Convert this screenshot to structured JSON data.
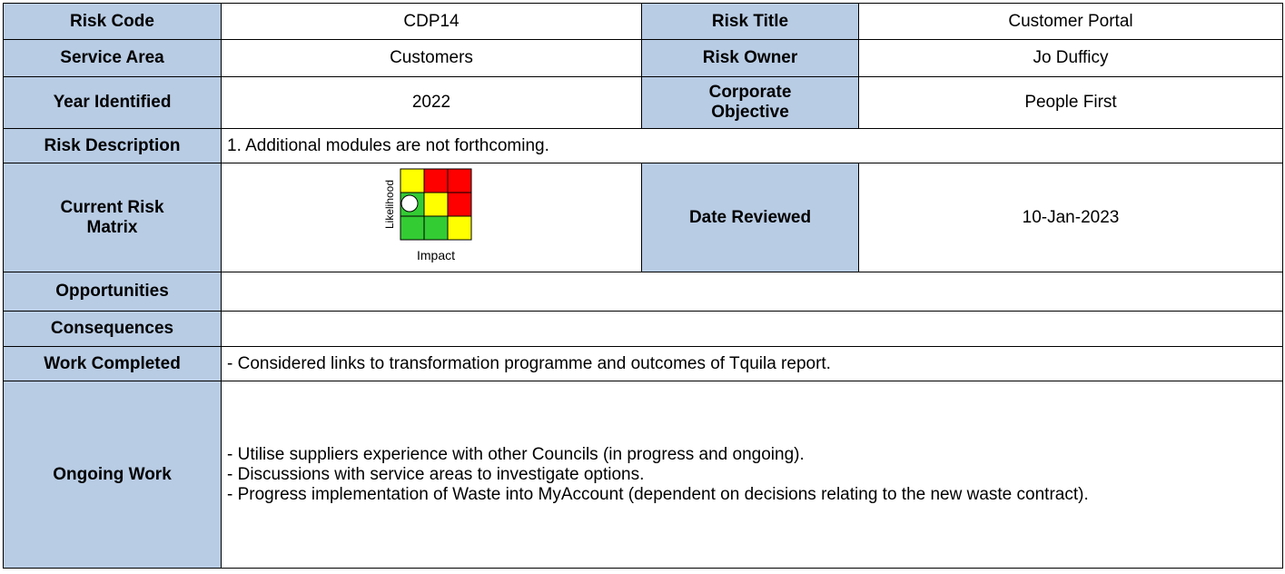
{
  "table": {
    "risk_code": {
      "label": "Risk Code",
      "value": "CDP14"
    },
    "risk_title": {
      "label": "Risk Title",
      "value": "Customer Portal"
    },
    "service_area": {
      "label": "Service Area",
      "value": "Customers"
    },
    "risk_owner": {
      "label": "Risk Owner",
      "value": "Jo Dufficy"
    },
    "year_identified": {
      "label": "Year Identified",
      "value": "2022"
    },
    "corporate_objective": {
      "label": "Corporate Objective",
      "value": "People First"
    },
    "risk_description": {
      "label": "Risk Description",
      "value": "1. Additional modules are not forthcoming."
    },
    "current_risk_matrix": {
      "label": "Current Risk Matrix",
      "y_label": "Likelihood",
      "x_label": "Impact"
    },
    "date_reviewed": {
      "label": "Date Reviewed",
      "value": "10-Jan-2023"
    },
    "opportunities": {
      "label": "Opportunities"
    },
    "consequences": {
      "label": "Consequences"
    },
    "work_completed": {
      "label": "Work Completed",
      "value": "- Considered links to transformation programme and outcomes of Tquila report."
    },
    "ongoing_work": {
      "label": "Ongoing Work",
      "lines": [
        "- Utilise suppliers experience with other Councils (in progress and ongoing).",
        "- Discussions with service areas to investigate options.",
        "- Progress implementation of Waste into MyAccount (dependent on decisions relating to the new waste contract)."
      ]
    }
  }
}
